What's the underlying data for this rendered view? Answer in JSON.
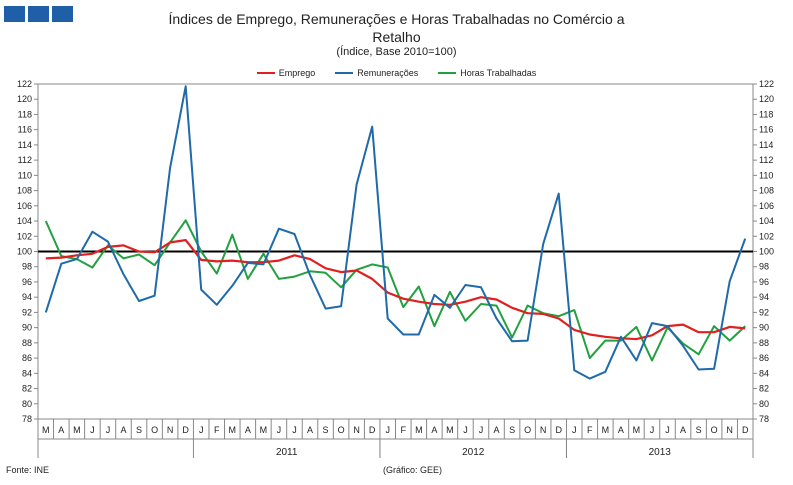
{
  "logo": {
    "color": "#1f5fa8"
  },
  "header": {
    "title_line1": "Índices de Emprego, Remunerações e Horas Trabalhadas no Comércio a",
    "title_line2": "Retalho",
    "subtitle": "(Índice, Base 2010=100)"
  },
  "footer": {
    "source": "Fonte: INE",
    "credit": "(Gráfico: GEE)"
  },
  "chart_data": {
    "type": "line",
    "title": "Índices de Emprego, Remunerações e Horas Trabalhadas no Comércio a Retalho",
    "subtitle": "(Índice, Base 2010=100)",
    "ylim": [
      78,
      122
    ],
    "yticks": [
      78,
      80,
      82,
      84,
      86,
      88,
      90,
      92,
      94,
      96,
      98,
      100,
      102,
      104,
      106,
      108,
      110,
      112,
      114,
      116,
      118,
      120,
      122
    ],
    "reference_line": 100,
    "grid": false,
    "legend_position": "top-center",
    "x": [
      "M",
      "A",
      "M",
      "J",
      "J",
      "A",
      "S",
      "O",
      "N",
      "D",
      "J",
      "F",
      "M",
      "A",
      "M",
      "J",
      "J",
      "A",
      "S",
      "O",
      "N",
      "D",
      "J",
      "F",
      "M",
      "A",
      "M",
      "J",
      "J",
      "A",
      "S",
      "O",
      "N",
      "D",
      "J",
      "F",
      "M",
      "A",
      "M",
      "J",
      "J",
      "A",
      "S",
      "O",
      "N",
      "D"
    ],
    "year_labels": [
      {
        "label": "2011",
        "start": 10,
        "end": 21
      },
      {
        "label": "2012",
        "start": 22,
        "end": 33
      },
      {
        "label": "2013",
        "start": 34,
        "end": 45
      }
    ],
    "series": [
      {
        "name": "Emprego",
        "color": "#e02020",
        "values": [
          99.1,
          99.2,
          99.5,
          99.7,
          100.6,
          100.8,
          100.0,
          99.9,
          101.2,
          101.5,
          98.9,
          98.7,
          98.8,
          98.6,
          98.6,
          98.8,
          99.5,
          99.0,
          97.8,
          97.3,
          97.5,
          96.4,
          94.6,
          93.8,
          93.4,
          93.1,
          93.0,
          93.4,
          94.0,
          93.7,
          92.6,
          91.9,
          91.8,
          91.2,
          89.7,
          89.1,
          88.8,
          88.6,
          88.5,
          89.0,
          90.2,
          90.4,
          89.4,
          89.4,
          90.1,
          89.9
        ]
      },
      {
        "name": "Remunerações",
        "color": "#1f6aa8",
        "values": [
          92.0,
          98.4,
          99.0,
          102.6,
          101.3,
          97.0,
          93.5,
          94.2,
          111.0,
          121.7,
          95.0,
          93.0,
          95.5,
          98.5,
          98.3,
          103.0,
          102.3,
          96.9,
          92.5,
          92.8,
          108.8,
          116.4,
          91.2,
          89.1,
          89.1,
          94.3,
          92.6,
          95.6,
          95.3,
          91.2,
          88.2,
          88.3,
          101.0,
          107.6,
          84.4,
          83.3,
          84.2,
          88.8,
          85.7,
          90.6,
          90.2,
          87.6,
          84.5,
          84.6,
          96.1,
          101.7
        ]
      },
      {
        "name": "Horas Trabalhadas",
        "color": "#22a040",
        "values": [
          104.0,
          99.4,
          99.0,
          97.9,
          100.8,
          99.1,
          99.6,
          98.2,
          101.2,
          104.1,
          100.0,
          97.1,
          102.2,
          96.4,
          99.7,
          96.4,
          96.7,
          97.4,
          97.2,
          95.3,
          97.6,
          98.3,
          97.9,
          92.7,
          95.4,
          90.2,
          94.7,
          90.9,
          93.1,
          92.9,
          88.7,
          92.9,
          91.9,
          91.5,
          92.3,
          86.0,
          88.3,
          88.3,
          90.1,
          85.7,
          90.0,
          87.9,
          86.5,
          90.2,
          88.3,
          90.2
        ]
      }
    ]
  }
}
